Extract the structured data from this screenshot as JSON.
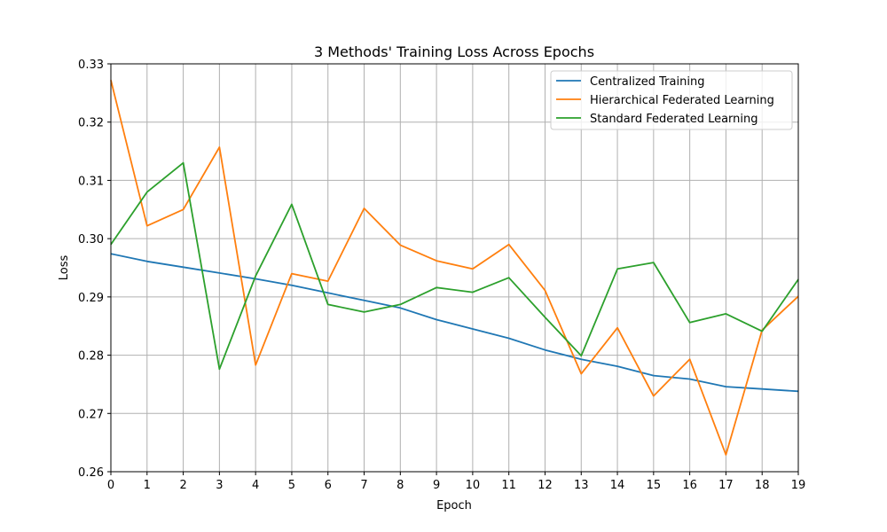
{
  "chart_data": {
    "type": "line",
    "title": "3 Methods' Training Loss Across Epochs",
    "xlabel": "Epoch",
    "ylabel": "Loss",
    "x": [
      0,
      1,
      2,
      3,
      4,
      5,
      6,
      7,
      8,
      9,
      10,
      11,
      12,
      13,
      14,
      15,
      16,
      17,
      18,
      19
    ],
    "xlim": [
      0,
      19
    ],
    "ylim": [
      0.26,
      0.33
    ],
    "xticks": [
      "0",
      "1",
      "2",
      "3",
      "4",
      "5",
      "6",
      "7",
      "8",
      "9",
      "10",
      "11",
      "12",
      "13",
      "14",
      "15",
      "16",
      "17",
      "18",
      "19"
    ],
    "yticks": [
      "0.26",
      "0.27",
      "0.28",
      "0.29",
      "0.30",
      "0.31",
      "0.32",
      "0.33"
    ],
    "ytick_values": [
      0.26,
      0.27,
      0.28,
      0.29,
      0.3,
      0.31,
      0.32,
      0.33
    ],
    "grid": true,
    "legend_position": "top-right",
    "series": [
      {
        "name": "Centralized Training",
        "color": "#1f77b4",
        "values": [
          0.2974,
          0.2961,
          0.2951,
          0.2941,
          0.2931,
          0.292,
          0.2907,
          0.2894,
          0.2881,
          0.2861,
          0.2845,
          0.2829,
          0.2809,
          0.2793,
          0.2781,
          0.2765,
          0.2759,
          0.2746,
          0.2742,
          0.2738
        ]
      },
      {
        "name": "Hierarchical Federated Learning",
        "color": "#ff7f0e",
        "values": [
          0.3272,
          0.3022,
          0.305,
          0.3157,
          0.2783,
          0.294,
          0.2927,
          0.3052,
          0.2989,
          0.2962,
          0.2948,
          0.299,
          0.2911,
          0.2768,
          0.2847,
          0.273,
          0.2793,
          0.2629,
          0.2843,
          0.2901
        ]
      },
      {
        "name": "Standard Federated Learning",
        "color": "#2ca02c",
        "values": [
          0.299,
          0.308,
          0.313,
          0.2776,
          0.2936,
          0.3059,
          0.2887,
          0.2874,
          0.2887,
          0.2916,
          0.2908,
          0.2933,
          0.2865,
          0.2799,
          0.2948,
          0.2959,
          0.2856,
          0.2871,
          0.2841,
          0.293
        ]
      }
    ]
  }
}
